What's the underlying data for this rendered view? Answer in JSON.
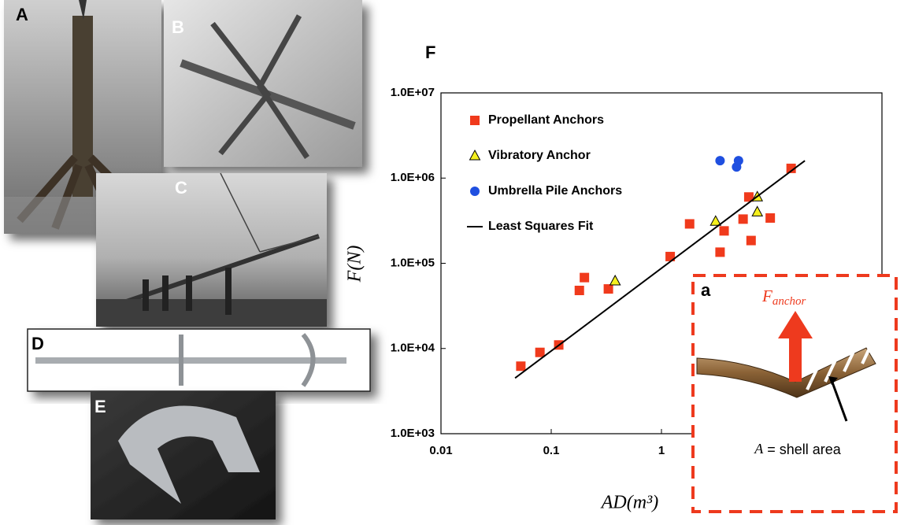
{
  "panel_labels": [
    "A",
    "B",
    "C",
    "D",
    "E"
  ],
  "chart_data": {
    "type": "scatter",
    "title": "F",
    "xlabel": "AD(m³)",
    "ylabel": "F(N)",
    "xscale": "log",
    "yscale": "log",
    "xlim": [
      0.01,
      100
    ],
    "ylim": [
      1000,
      10000000
    ],
    "xticks": [
      0.01,
      0.1,
      1
    ],
    "yticks": [
      {
        "value": 1000,
        "label": "1.0E+03"
      },
      {
        "value": 10000,
        "label": "1.0E+04"
      },
      {
        "value": 100000,
        "label": "1.0E+05"
      },
      {
        "value": 1000000,
        "label": "1.0E+06"
      },
      {
        "value": 10000000,
        "label": "1.0E+07"
      }
    ],
    "legend": "upper left",
    "series": [
      {
        "name": "Propellant Anchors",
        "color": "#f03a1c",
        "marker": "square",
        "x": [
          0.053,
          0.079,
          0.117,
          0.18,
          0.2,
          0.33,
          1.2,
          1.8,
          3.4,
          3.7,
          5.5,
          6.2,
          6.5,
          9.7,
          15
        ],
        "values": [
          6200,
          9000,
          11000,
          48000,
          68000,
          50000,
          120000,
          290000,
          135000,
          240000,
          330000,
          600000,
          185000,
          340000,
          1300000
        ]
      },
      {
        "name": "Vibratory Anchor",
        "color": "#f5f01e",
        "marker": "triangle",
        "x": [
          0.38,
          3.1,
          7.4,
          7.4
        ],
        "values": [
          62000,
          310000,
          600000,
          400000
        ]
      },
      {
        "name": "Umbrella Pile Anchors",
        "color": "#1f4fe0",
        "marker": "circle",
        "x": [
          3.4,
          4.8,
          5.0
        ],
        "values": [
          1600000,
          1350000,
          1600000
        ]
      },
      {
        "name": "Least Squares Fit",
        "color": "#000000",
        "marker": "line",
        "x": [
          0.047,
          20
        ],
        "values": [
          4500,
          1600000
        ]
      }
    ],
    "inset": {
      "label": "a",
      "force": "F",
      "force_sub": "anchor",
      "caption_var": "A",
      "caption_text": "= shell area"
    }
  }
}
